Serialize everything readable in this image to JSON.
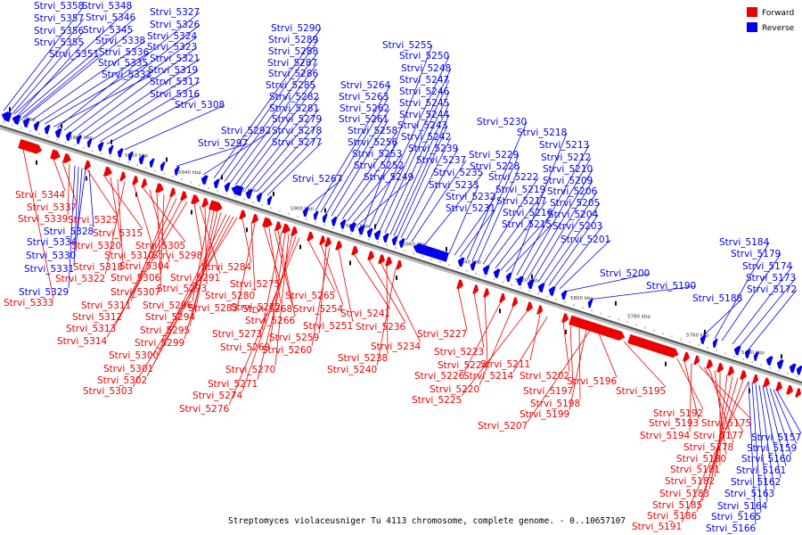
{
  "caption": "Streptomyces violaceusniger Tu 4113 chromosome, complete genome. - 0..10657107",
  "legend": [
    {
      "label": "Forward",
      "color": "#ee0000"
    },
    {
      "label": "Reverse",
      "color": "#0000ee"
    }
  ],
  "kbp_ticks": [
    "6000 kbp",
    "5980 kbp",
    "5960 kbp",
    "5940 kbp",
    "5920 kbp",
    "5900 kbp",
    "5880 kbp",
    "5860 kbp",
    "5840 kbp",
    "5820 kbp",
    "5800 kbp",
    "5780 kbp",
    "5760 kbp",
    "5740 kbp"
  ],
  "top_labels": [
    "Strvi_5358",
    "Strvi_5348",
    "Strvi_5357",
    "Strvi_5346",
    "Strvi_5356",
    "Strvi_5345",
    "Strvi_5355",
    "Strvi_5338",
    "Strvi_5351",
    "Strvi_5336",
    "Strvi_5335",
    "Strvi_5332",
    "Strvi_5327",
    "Strvi_5326",
    "Strvi_5324",
    "Strvi_5323",
    "Strvi_5321",
    "Strvi_5319",
    "Strvi_5317",
    "Strvi_5316",
    "Strvi_5308",
    "Strvi_5297",
    "Strvi_5292",
    "Strvi_5290",
    "Strvi_5289",
    "Strvi_5288",
    "Strvi_5287",
    "Strvi_5286",
    "Strvi_5285",
    "Strvi_5282",
    "Strvi_5281",
    "Strvi_5279",
    "Strvi_5278",
    "Strvi_5277",
    "Strvi_5267",
    "Strvi_5264",
    "Strvi_5263",
    "Strvi_5262",
    "Strvi_5261",
    "Strvi_5258",
    "Strvi_5256",
    "Strvi_5253",
    "Strvi_5252",
    "Strvi_5249",
    "Strvi_5255",
    "Strvi_5250",
    "Strvi_5248",
    "Strvi_5247",
    "Strvi_5246",
    "Strvi_5245",
    "Strvi_5244",
    "Strvi_5243",
    "Strvi_5242",
    "Strvi_5239",
    "Strvi_5237",
    "Strvi_5235",
    "Strvi_5233",
    "Strvi_5232",
    "Strvi_5231",
    "Strvi_5230",
    "Strvi_5229",
    "Strvi_5228",
    "Strvi_5222",
    "Strvi_5219",
    "Strvi_5217",
    "Strvi_5216",
    "Strvi_5215",
    "Strvi_5218",
    "Strvi_5213",
    "Strvi_5212",
    "Strvi_5210",
    "Strvi_5209",
    "Strvi_5206",
    "Strvi_5205",
    "Strvi_5204",
    "Strvi_5203",
    "Strvi_5201",
    "Strvi_5200",
    "Strvi_5190",
    "Strvi_5188",
    "Strvi_5184",
    "Strvi_5179",
    "Strvi_5174",
    "Strvi_5173",
    "Strvi_5172"
  ],
  "mid_blue_labels": [
    "Strvi_5328",
    "Strvi_5334",
    "Strvi_5330",
    "Strvi_5331",
    "Strvi_5329"
  ],
  "bottom_blue_labels": [
    "Strvi_5157",
    "Strvi_5159",
    "Strvi_5160",
    "Strvi_5161",
    "Strvi_5162",
    "Strvi_5163",
    "Strvi_5164",
    "Strvi_5165",
    "Strvi_5166"
  ],
  "red_labels": [
    "Strvi_5344",
    "Strvi_5337",
    "Strvi_5339",
    "Strvi_5325",
    "Strvi_5315",
    "Strvi_5320",
    "Strvi_5318",
    "Strvi_5322",
    "Strvi_5333",
    "Strvi_5310",
    "Strvi_5305",
    "Strvi_5304",
    "Strvi_5306",
    "Strvi_5307",
    "Strvi_5311",
    "Strvi_5312",
    "Strvi_5313",
    "Strvi_5314",
    "Strvi_5298",
    "Strvi_5291",
    "Strvi_5293",
    "Strvi_5296",
    "Strvi_5294",
    "Strvi_5295",
    "Strvi_5299",
    "Strvi_5300",
    "Strvi_5301",
    "Strvi_5302",
    "Strvi_5303",
    "Strvi_5284",
    "Strvi_5280",
    "Strvi_5283",
    "Strvi_5275",
    "Strvi_5272",
    "Strvi_5268",
    "Strvi_5266",
    "Strvi_5273",
    "Strvi_5269",
    "Strvi_5270",
    "Strvi_5271",
    "Strvi_5274",
    "Strvi_5276",
    "Strvi_5265",
    "Strvi_5254",
    "Strvi_5259",
    "Strvi_5260",
    "Strvi_5251",
    "Strvi_5241",
    "Strvi_5236",
    "Strvi_5234",
    "Strvi_5238",
    "Strvi_5240",
    "Strvi_5227",
    "Strvi_5223",
    "Strvi_5224",
    "Strvi_5226",
    "Strvi_5220",
    "Strvi_5225",
    "Strvi_5211",
    "Strvi_5214",
    "Strvi_5202",
    "Strvi_5197",
    "Strvi_5198",
    "Strvi_5199",
    "Strvi_5207",
    "Strvi_5196",
    "Strvi_5195",
    "Strvi_5192",
    "Strvi_5193",
    "Strvi_5194",
    "Strvi_5175",
    "Strvi_5177",
    "Strvi_5178",
    "Strvi_5180",
    "Strvi_5181",
    "Strvi_5182",
    "Strvi_5183",
    "Strvi_5185",
    "Strvi_5186",
    "Strvi_5191"
  ]
}
